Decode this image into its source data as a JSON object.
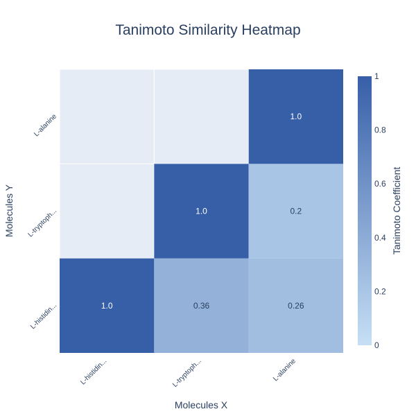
{
  "chart_data": {
    "type": "heatmap",
    "title": "Tanimoto Similarity Heatmap",
    "xlabel": "Molecules X",
    "ylabel": "Molecules Y",
    "x_categories": [
      "L-histidin...",
      "L-tryptoph...",
      "L-alanine"
    ],
    "y_categories": [
      "L-histidin...",
      "L-tryptoph...",
      "L-alanine"
    ],
    "cells": [
      {
        "x": "L-histidin...",
        "y": "L-histidin...",
        "value": 1.0,
        "label": "1.0"
      },
      {
        "x": "L-tryptoph...",
        "y": "L-histidin...",
        "value": 0.36,
        "label": "0.36"
      },
      {
        "x": "L-alanine",
        "y": "L-histidin...",
        "value": 0.26,
        "label": "0.26"
      },
      {
        "x": "L-tryptoph...",
        "y": "L-tryptoph...",
        "value": 1.0,
        "label": "1.0"
      },
      {
        "x": "L-alanine",
        "y": "L-tryptoph...",
        "value": 0.2,
        "label": "0.2"
      },
      {
        "x": "L-alanine",
        "y": "L-alanine",
        "value": 1.0,
        "label": "1.0"
      }
    ],
    "empty_cell_color": "#e5ecf6",
    "colorscale": {
      "title": "Tanimoto Coefficient",
      "range": [
        0,
        1
      ],
      "low_color": "#c6dff5",
      "high_color": "#375fa8",
      "tick_values": [
        0,
        0.2,
        0.4,
        0.6,
        0.8,
        1
      ],
      "tick_labels": [
        "0",
        "0.2",
        "0.4",
        "0.6",
        "0.8",
        "1"
      ]
    }
  }
}
